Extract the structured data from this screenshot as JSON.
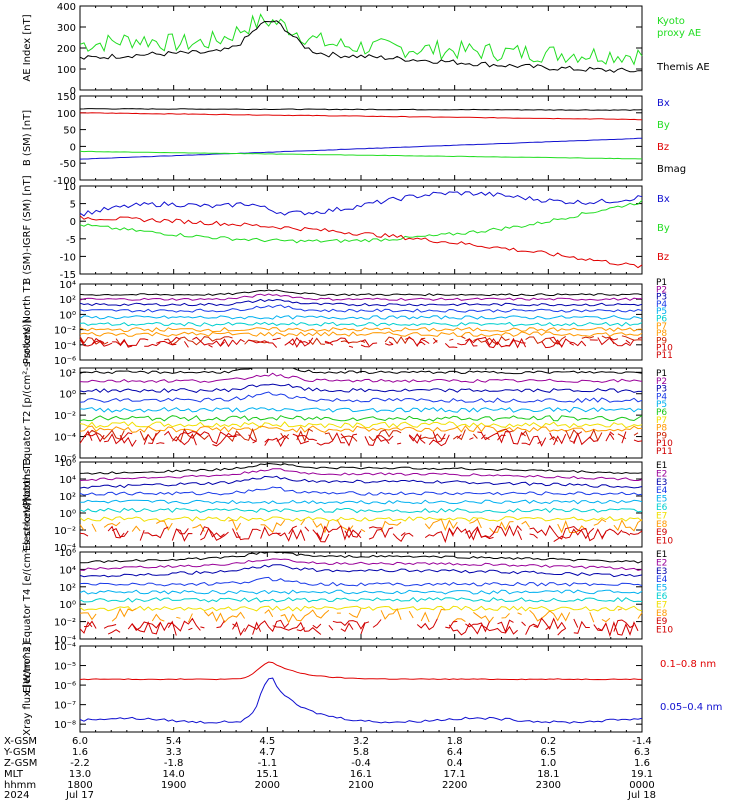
{
  "colors": {
    "black": "#000000",
    "red": "#e00000",
    "green": "#22dd22",
    "blue": "#1010d0",
    "purple": "#990099",
    "navy": "#0000aa",
    "bluemed": "#1a3be8",
    "cyan": "#00b0f0",
    "teal": "#00cfcf",
    "green2": "#19c819",
    "yellow": "#f0e000",
    "orange": "#ff9900",
    "darkred": "#cc2200",
    "red2": "#d00000",
    "grey": "#c8c8c8"
  },
  "chart_data": [
    {
      "type": "line",
      "ylabel": "AE Index [nT]",
      "ylim": [
        0,
        400
      ],
      "ticks": [
        "0",
        "100",
        "200",
        "300",
        "400"
      ],
      "tick_values": [
        0,
        100,
        200,
        300,
        400
      ],
      "log": false,
      "series": [
        {
          "name": "Kyoto proxy AE",
          "color_key": "green"
        },
        {
          "name": "Themis AE",
          "color_key": "black"
        }
      ]
    },
    {
      "type": "line",
      "ylabel": "B (SM) [nT]",
      "ylim": [
        -100,
        150
      ],
      "ticks": [
        "150",
        "100",
        "50",
        "0",
        "-50",
        "-100"
      ],
      "tick_values": [
        150,
        100,
        50,
        0,
        -50,
        -100
      ],
      "log": false,
      "series": [
        {
          "name": "Bx",
          "color_key": "blue"
        },
        {
          "name": "By",
          "color_key": "green"
        },
        {
          "name": "Bz",
          "color_key": "red"
        },
        {
          "name": "Bmag",
          "color_key": "black"
        }
      ]
    },
    {
      "type": "line",
      "ylabel": "B (SM)-IGRF (SM) [nT]",
      "ylim": [
        -15,
        10
      ],
      "ticks": [
        "10",
        "5",
        "0",
        "-5",
        "-10",
        "-15"
      ],
      "tick_values": [
        10,
        5,
        0,
        -5,
        -10,
        -15
      ],
      "log": false,
      "series": [
        {
          "name": "Bx",
          "color_key": "blue"
        },
        {
          "name": "By",
          "color_key": "green"
        },
        {
          "name": "Bz",
          "color_key": "red"
        }
      ]
    },
    {
      "type": "line",
      "ylabel": "Protons North T1",
      "log": true,
      "ticks": [
        "10⁴",
        "10²",
        "10⁰",
        "10⁻²",
        "10⁻⁴",
        "10⁻⁶"
      ],
      "tick_values": [
        4,
        2,
        0,
        -2,
        -4,
        -6
      ],
      "ylim": [
        -6,
        4
      ],
      "series_labels": [
        "P1",
        "P2",
        "P3",
        "P4",
        "P5",
        "P6",
        "P7",
        "P8",
        "P9",
        "P10",
        "P11"
      ],
      "series_colors": [
        "black",
        "purple",
        "navy",
        "bluemed",
        "cyan",
        "teal",
        "orange",
        "orange",
        "darkred",
        "red2",
        "red2"
      ]
    },
    {
      "type": "line",
      "ylabel": "Protons Equator T2 [p/(cm²-s-sr-keV)]",
      "log": true,
      "ticks": [
        "10²",
        "10⁰",
        "10⁻²",
        "10⁻⁴",
        "10⁻⁶"
      ],
      "tick_values": [
        2,
        0,
        -2,
        -4,
        -6
      ],
      "ylim": [
        -6,
        2.4
      ],
      "series_labels": [
        "P1",
        "P2",
        "P3",
        "P4",
        "P5",
        "P6",
        "P7",
        "P8",
        "P9",
        "P10",
        "P11"
      ],
      "series_colors": [
        "black",
        "purple",
        "navy",
        "bluemed",
        "cyan",
        "green2",
        "yellow",
        "orange",
        "darkred",
        "red2",
        "red2"
      ]
    },
    {
      "type": "line",
      "ylabel": "Electrons North T3",
      "log": true,
      "ticks": [
        "10⁶",
        "10⁴",
        "10²",
        "10⁰",
        "10⁻²",
        "10⁻⁴"
      ],
      "tick_values": [
        6,
        4,
        2,
        0,
        -2,
        -4
      ],
      "ylim": [
        -4,
        6
      ],
      "series_labels": [
        "E1",
        "E2",
        "E3",
        "E4",
        "E5",
        "E6",
        "E7",
        "E8",
        "E9",
        "E10"
      ],
      "series_colors": [
        "black",
        "purple",
        "navy",
        "bluemed",
        "cyan",
        "teal",
        "yellow",
        "orange",
        "red2",
        "red2"
      ]
    },
    {
      "type": "line",
      "ylabel": "Electrons Equator T4 [e/(cm²-s-sr-keV)]",
      "log": true,
      "ticks": [
        "10⁶",
        "10⁴",
        "10²",
        "10⁰",
        "10⁻²",
        "10⁻⁴"
      ],
      "tick_values": [
        6,
        4,
        2,
        0,
        -2,
        -4
      ],
      "ylim": [
        -4,
        6
      ],
      "series_labels": [
        "E1",
        "E2",
        "E3",
        "E4",
        "E5",
        "E6",
        "E7",
        "E8",
        "E9",
        "E10"
      ],
      "series_colors": [
        "black",
        "purple",
        "navy",
        "bluemed",
        "cyan",
        "teal",
        "yellow",
        "orange",
        "red2",
        "red2"
      ]
    },
    {
      "type": "line",
      "ylabel": "Xray flux [W/m^2]",
      "log": true,
      "ticks": [
        "10⁻⁴",
        "10⁻⁵",
        "10⁻⁶",
        "10⁻⁷",
        "10⁻⁸"
      ],
      "tick_values": [
        -4,
        -5,
        -6,
        -7,
        -8
      ],
      "ylim": [
        -8.4,
        -4
      ],
      "series": [
        {
          "name": "0.1–0.8 nm",
          "color_key": "red"
        },
        {
          "name": "0.05–0.4 nm",
          "color_key": "blue"
        }
      ]
    }
  ],
  "xaxis": {
    "row_labels": [
      "X-GSM",
      "Y-GSM",
      "Z-GSM",
      "MLT",
      "hhmm",
      "2024"
    ],
    "columns": [
      [
        "6.0",
        "1.6",
        "-2.2",
        "13.0",
        "1800",
        "Jul 17"
      ],
      [
        "5.4",
        "3.3",
        "-1.8",
        "14.0",
        "1900",
        ""
      ],
      [
        "4.5",
        "4.7",
        "-1.1",
        "15.1",
        "2000",
        ""
      ],
      [
        "3.2",
        "5.8",
        "-0.4",
        "16.1",
        "2100",
        ""
      ],
      [
        "1.8",
        "6.4",
        "0.4",
        "17.1",
        "2200",
        ""
      ],
      [
        "0.2",
        "6.5",
        "1.0",
        "18.1",
        "2300",
        ""
      ],
      [
        "-1.4",
        "6.3",
        "1.6",
        "19.1",
        "0000",
        "Jul 18"
      ]
    ]
  },
  "legend_text": {
    "kyoto_line1": "Kyoto",
    "kyoto_line2": "proxy AE",
    "themis": "Themis AE",
    "b1": [
      "Bx",
      "By",
      "Bz",
      "Bmag"
    ],
    "b2": [
      "Bx",
      "By",
      "Bz"
    ],
    "xray_long": "0.1–0.8 nm",
    "xray_short": "0.05–0.4 nm"
  }
}
